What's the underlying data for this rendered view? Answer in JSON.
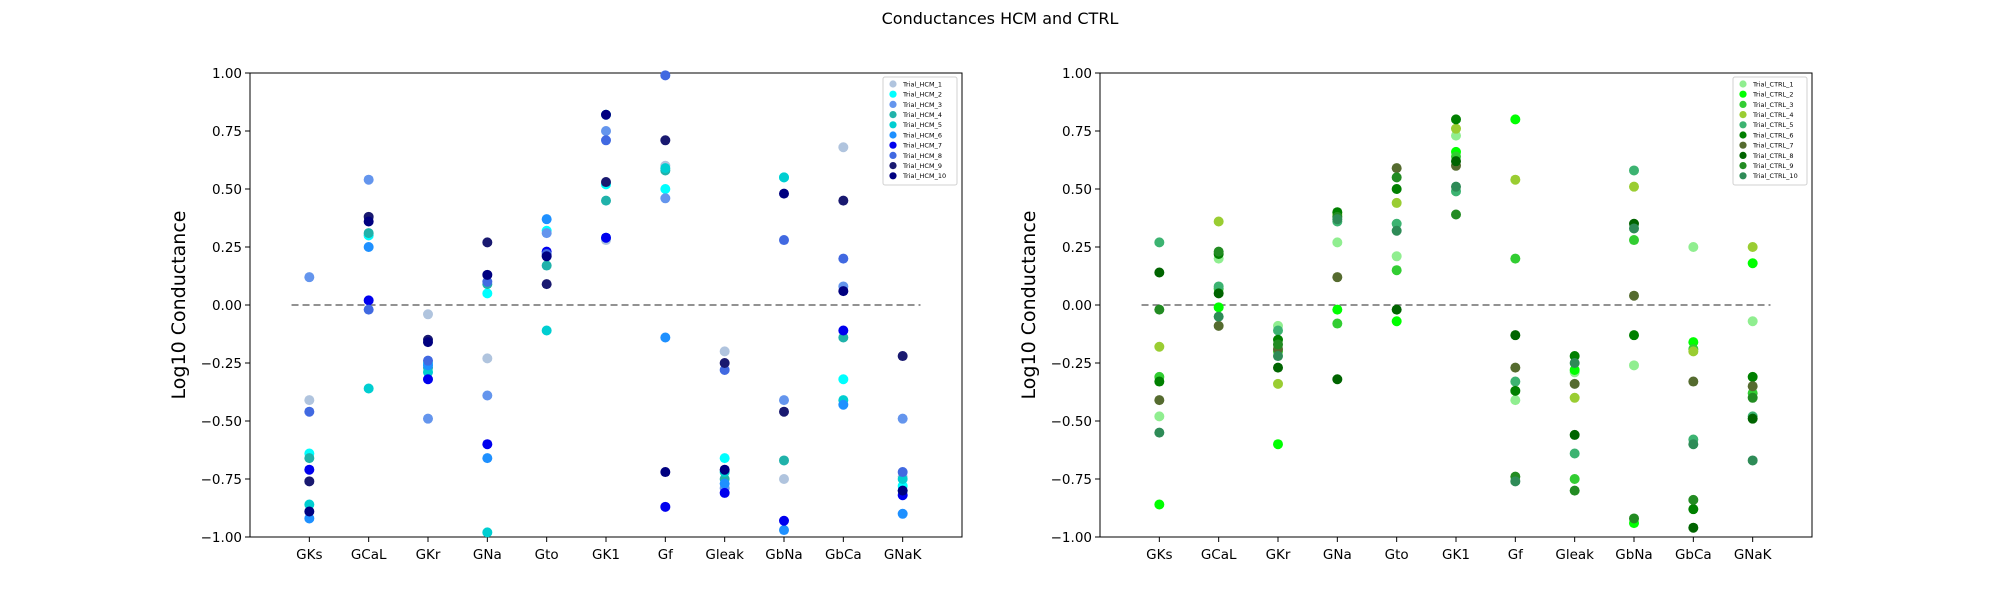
{
  "figure": {
    "title": "Conductances HCM and CTRL"
  },
  "chart_data": [
    {
      "type": "scatter",
      "title": "",
      "xlabel": "",
      "ylabel": "Log10 Conductance",
      "categories": [
        "GKs",
        "GCaL",
        "GKr",
        "GNa",
        "Gto",
        "GK1",
        "Gf",
        "Gleak",
        "GbNa",
        "GbCa",
        "GNaK"
      ],
      "ylim": [
        -1.0,
        1.0
      ],
      "yticks": [
        "−1.00",
        "−0.75",
        "−0.50",
        "−0.25",
        "0.00",
        "0.25",
        "0.50",
        "0.75",
        "1.00"
      ],
      "reference_line": 0.0,
      "legend_position": "upper right",
      "series": [
        {
          "name": "Trial_HCM_1",
          "color": "#b0c4de",
          "values": [
            -0.41,
            0.3,
            -0.04,
            -0.23,
            0.21,
            0.28,
            0.6,
            -0.2,
            -0.75,
            0.68,
            -0.74
          ]
        },
        {
          "name": "Trial_HCM_2",
          "color": "#00ffff",
          "values": [
            -0.64,
            0.3,
            -0.25,
            0.05,
            0.32,
            0.52,
            0.5,
            -0.66,
            0.55,
            -0.32,
            -0.78
          ]
        },
        {
          "name": "Trial_HCM_3",
          "color": "#6495ed",
          "values": [
            0.12,
            0.54,
            -0.49,
            -0.39,
            0.31,
            0.75,
            0.46,
            -0.79,
            -0.41,
            0.08,
            -0.49
          ]
        },
        {
          "name": "Trial_HCM_4",
          "color": "#20b2aa",
          "values": [
            -0.66,
            0.31,
            -0.27,
            0.09,
            0.17,
            0.45,
            0.58,
            -0.75,
            -0.67,
            -0.14,
            -0.8
          ]
        },
        {
          "name": "Trial_HCM_5",
          "color": "#00ced1",
          "values": [
            -0.86,
            -0.36,
            -0.29,
            -0.98,
            -0.11,
            0.82,
            0.59,
            -0.72,
            0.55,
            -0.41,
            -0.75
          ]
        },
        {
          "name": "Trial_HCM_6",
          "color": "#1e90ff",
          "values": [
            -0.92,
            0.25,
            -0.26,
            -0.66,
            0.37,
            0.29,
            -0.14,
            -0.77,
            -0.97,
            -0.43,
            -0.9
          ]
        },
        {
          "name": "Trial_HCM_7",
          "color": "#0000ee",
          "values": [
            -0.71,
            0.02,
            -0.32,
            -0.6,
            0.23,
            0.29,
            -0.87,
            -0.81,
            -0.93,
            -0.11,
            -0.82
          ]
        },
        {
          "name": "Trial_HCM_8",
          "color": "#4169e1",
          "values": [
            -0.46,
            -0.02,
            -0.24,
            0.1,
            0.22,
            0.71,
            0.99,
            -0.28,
            0.28,
            0.2,
            -0.72
          ]
        },
        {
          "name": "Trial_HCM_9",
          "color": "#191970",
          "values": [
            -0.76,
            0.38,
            -0.15,
            0.27,
            0.09,
            0.53,
            0.71,
            -0.25,
            -0.46,
            0.45,
            -0.22
          ]
        },
        {
          "name": "Trial_HCM_10",
          "color": "#000080",
          "values": [
            -0.89,
            0.36,
            -0.16,
            0.13,
            0.21,
            0.82,
            -0.72,
            -0.71,
            0.48,
            0.06,
            -0.8
          ]
        }
      ]
    },
    {
      "type": "scatter",
      "title": "",
      "xlabel": "",
      "ylabel": "Log10 Conductance",
      "categories": [
        "GKs",
        "GCaL",
        "GKr",
        "GNa",
        "Gto",
        "GK1",
        "Gf",
        "Gleak",
        "GbNa",
        "GbCa",
        "GNaK"
      ],
      "ylim": [
        -1.0,
        1.0
      ],
      "yticks": [
        "−1.00",
        "−0.75",
        "−0.50",
        "−0.25",
        "0.00",
        "0.25",
        "0.50",
        "0.75",
        "1.00"
      ],
      "reference_line": 0.0,
      "legend_position": "upper right",
      "series": [
        {
          "name": "Trial_CTRL_1",
          "color": "#90ee90",
          "values": [
            -0.48,
            0.2,
            -0.09,
            0.27,
            0.21,
            0.73,
            -0.41,
            -0.29,
            -0.26,
            0.25,
            -0.07
          ]
        },
        {
          "name": "Trial_CTRL_2",
          "color": "#00ff00",
          "values": [
            -0.86,
            -0.01,
            -0.6,
            -0.02,
            -0.07,
            0.66,
            0.8,
            -0.28,
            -0.94,
            -0.16,
            0.18
          ]
        },
        {
          "name": "Trial_CTRL_3",
          "color": "#32cd32",
          "values": [
            -0.31,
            0.07,
            -0.2,
            -0.08,
            0.15,
            0.64,
            0.2,
            -0.75,
            0.28,
            -0.19,
            -0.38
          ]
        },
        {
          "name": "Trial_CTRL_4",
          "color": "#9acd32",
          "values": [
            -0.18,
            0.36,
            -0.34,
            0.39,
            0.44,
            0.76,
            0.54,
            -0.4,
            0.51,
            -0.2,
            0.25
          ]
        },
        {
          "name": "Trial_CTRL_5",
          "color": "#3cb371",
          "values": [
            0.27,
            0.08,
            -0.11,
            0.36,
            0.35,
            0.49,
            -0.33,
            -0.64,
            0.58,
            -0.58,
            -0.48
          ]
        },
        {
          "name": "Trial_CTRL_6",
          "color": "#008000",
          "values": [
            -0.33,
            0.22,
            -0.15,
            0.4,
            0.5,
            0.8,
            -0.37,
            -0.22,
            -0.13,
            -0.88,
            -0.31
          ]
        },
        {
          "name": "Trial_CTRL_7",
          "color": "#556b2f",
          "values": [
            -0.41,
            -0.09,
            -0.19,
            0.12,
            0.59,
            0.6,
            -0.27,
            -0.34,
            0.04,
            -0.33,
            -0.35
          ]
        },
        {
          "name": "Trial_CTRL_8",
          "color": "#006400",
          "values": [
            0.14,
            0.05,
            -0.27,
            -0.32,
            -0.02,
            0.62,
            -0.13,
            -0.56,
            0.35,
            -0.96,
            -0.49
          ]
        },
        {
          "name": "Trial_CTRL_9",
          "color": "#228b22",
          "values": [
            -0.02,
            0.23,
            -0.17,
            0.38,
            0.55,
            0.39,
            -0.74,
            -0.8,
            -0.92,
            -0.84,
            -0.4
          ]
        },
        {
          "name": "Trial_CTRL_10",
          "color": "#2e8b57",
          "values": [
            -0.55,
            -0.05,
            -0.22,
            0.37,
            0.32,
            0.51,
            -0.76,
            -0.25,
            0.33,
            -0.6,
            -0.67
          ]
        }
      ]
    }
  ]
}
